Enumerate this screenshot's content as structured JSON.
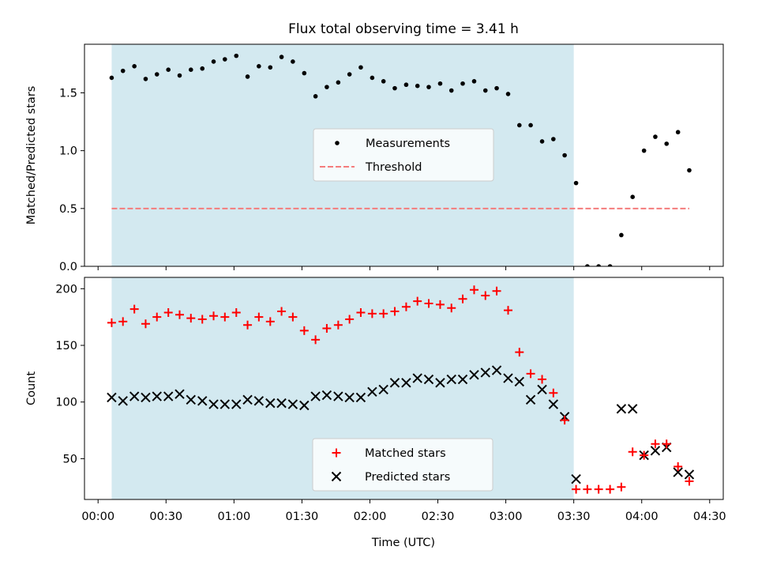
{
  "figure": {
    "title": "Flux total observing time = 3.41 h",
    "xlabel": "Time (UTC)",
    "x_ticks": [
      "00:00",
      "00:30",
      "01:00",
      "01:30",
      "02:00",
      "02:30",
      "03:00",
      "03:30",
      "04:00",
      "04:30"
    ],
    "x_tick_values_hours": [
      0,
      0.5,
      1,
      1.5,
      2,
      2.5,
      3,
      3.5,
      4,
      4.5
    ],
    "xlim_hours": [
      -0.1,
      4.6
    ],
    "shaded_interval_hours": [
      0.1,
      3.5
    ],
    "colors": {
      "shade": "#d3e9f0",
      "threshold": "#f47c7c",
      "matched": "#ff0000",
      "predicted": "#000000",
      "measurements": "#000000"
    }
  },
  "chart_data": [
    {
      "type": "scatter",
      "panel": "top",
      "ylabel": "Matched/Predicted stars",
      "ylim": [
        0,
        1.92
      ],
      "yticks": [
        "0.0",
        "0.5",
        "1.0",
        "1.5"
      ],
      "ytick_values": [
        0,
        0.5,
        1.0,
        1.5
      ],
      "legend": {
        "location": "center",
        "entries": [
          "Measurements",
          "Threshold"
        ]
      },
      "threshold": {
        "name": "Threshold",
        "value": 0.5,
        "x_range": [
          0.1,
          4.35
        ]
      },
      "series": [
        {
          "name": "Measurements",
          "x": [
            0.1,
            0.183,
            0.267,
            0.35,
            0.433,
            0.517,
            0.6,
            0.683,
            0.767,
            0.85,
            0.933,
            1.017,
            1.1,
            1.183,
            1.267,
            1.35,
            1.433,
            1.517,
            1.6,
            1.683,
            1.767,
            1.85,
            1.933,
            2.017,
            2.1,
            2.183,
            2.267,
            2.35,
            2.433,
            2.517,
            2.6,
            2.683,
            2.767,
            2.85,
            2.933,
            3.017,
            3.1,
            3.183,
            3.267,
            3.35,
            3.433,
            3.517,
            3.6,
            3.683,
            3.767,
            3.85,
            3.933,
            4.017,
            4.1,
            4.183,
            4.267,
            4.35
          ],
          "values": [
            1.63,
            1.69,
            1.73,
            1.62,
            1.66,
            1.7,
            1.65,
            1.7,
            1.71,
            1.77,
            1.79,
            1.82,
            1.64,
            1.73,
            1.72,
            1.81,
            1.77,
            1.67,
            1.47,
            1.55,
            1.59,
            1.66,
            1.72,
            1.63,
            1.6,
            1.54,
            1.57,
            1.56,
            1.55,
            1.58,
            1.52,
            1.58,
            1.6,
            1.52,
            1.54,
            1.49,
            1.22,
            1.22,
            1.08,
            1.1,
            0.96,
            0.72,
            0.0,
            0.0,
            0.0,
            0.27,
            0.6,
            1.0,
            1.12,
            1.06,
            1.16,
            0.83
          ]
        }
      ]
    },
    {
      "type": "scatter",
      "panel": "bottom",
      "ylabel": "Count",
      "ylim": [
        14,
        210
      ],
      "yticks": [
        "50",
        "100",
        "150",
        "200"
      ],
      "ytick_values": [
        50,
        100,
        150,
        200
      ],
      "legend": {
        "location": "lower center",
        "entries": [
          "Matched stars",
          "Predicted stars"
        ]
      },
      "x": [
        0.1,
        0.183,
        0.267,
        0.35,
        0.433,
        0.517,
        0.6,
        0.683,
        0.767,
        0.85,
        0.933,
        1.017,
        1.1,
        1.183,
        1.267,
        1.35,
        1.433,
        1.517,
        1.6,
        1.683,
        1.767,
        1.85,
        1.933,
        2.017,
        2.1,
        2.183,
        2.267,
        2.35,
        2.433,
        2.517,
        2.6,
        2.683,
        2.767,
        2.85,
        2.933,
        3.017,
        3.1,
        3.183,
        3.267,
        3.35,
        3.433,
        3.517,
        3.6,
        3.683,
        3.767,
        3.85,
        3.933,
        4.017,
        4.1,
        4.183,
        4.267,
        4.35
      ],
      "series": [
        {
          "name": "Matched stars",
          "marker": "plus",
          "values": [
            170,
            171,
            182,
            169,
            175,
            179,
            177,
            174,
            173,
            176,
            175,
            179,
            168,
            175,
            171,
            180,
            175,
            163,
            155,
            165,
            168,
            173,
            179,
            178,
            178,
            180,
            184,
            189,
            187,
            186,
            183,
            191,
            199,
            194,
            198,
            181,
            144,
            125,
            120,
            108,
            84,
            23,
            23,
            23,
            23,
            25,
            56,
            53,
            63,
            63,
            43,
            30
          ]
        },
        {
          "name": "Predicted stars",
          "marker": "x",
          "values": [
            104,
            101,
            105,
            104,
            105,
            105,
            107,
            102,
            101,
            98,
            98,
            98,
            102,
            101,
            99,
            99,
            98,
            97,
            105,
            106,
            105,
            104,
            104,
            109,
            111,
            117,
            117,
            121,
            120,
            117,
            120,
            120,
            124,
            126,
            128,
            121,
            118,
            102,
            111,
            98,
            87,
            32,
            null,
            null,
            null,
            94,
            94,
            53,
            57,
            60,
            38,
            36
          ]
        }
      ]
    }
  ]
}
